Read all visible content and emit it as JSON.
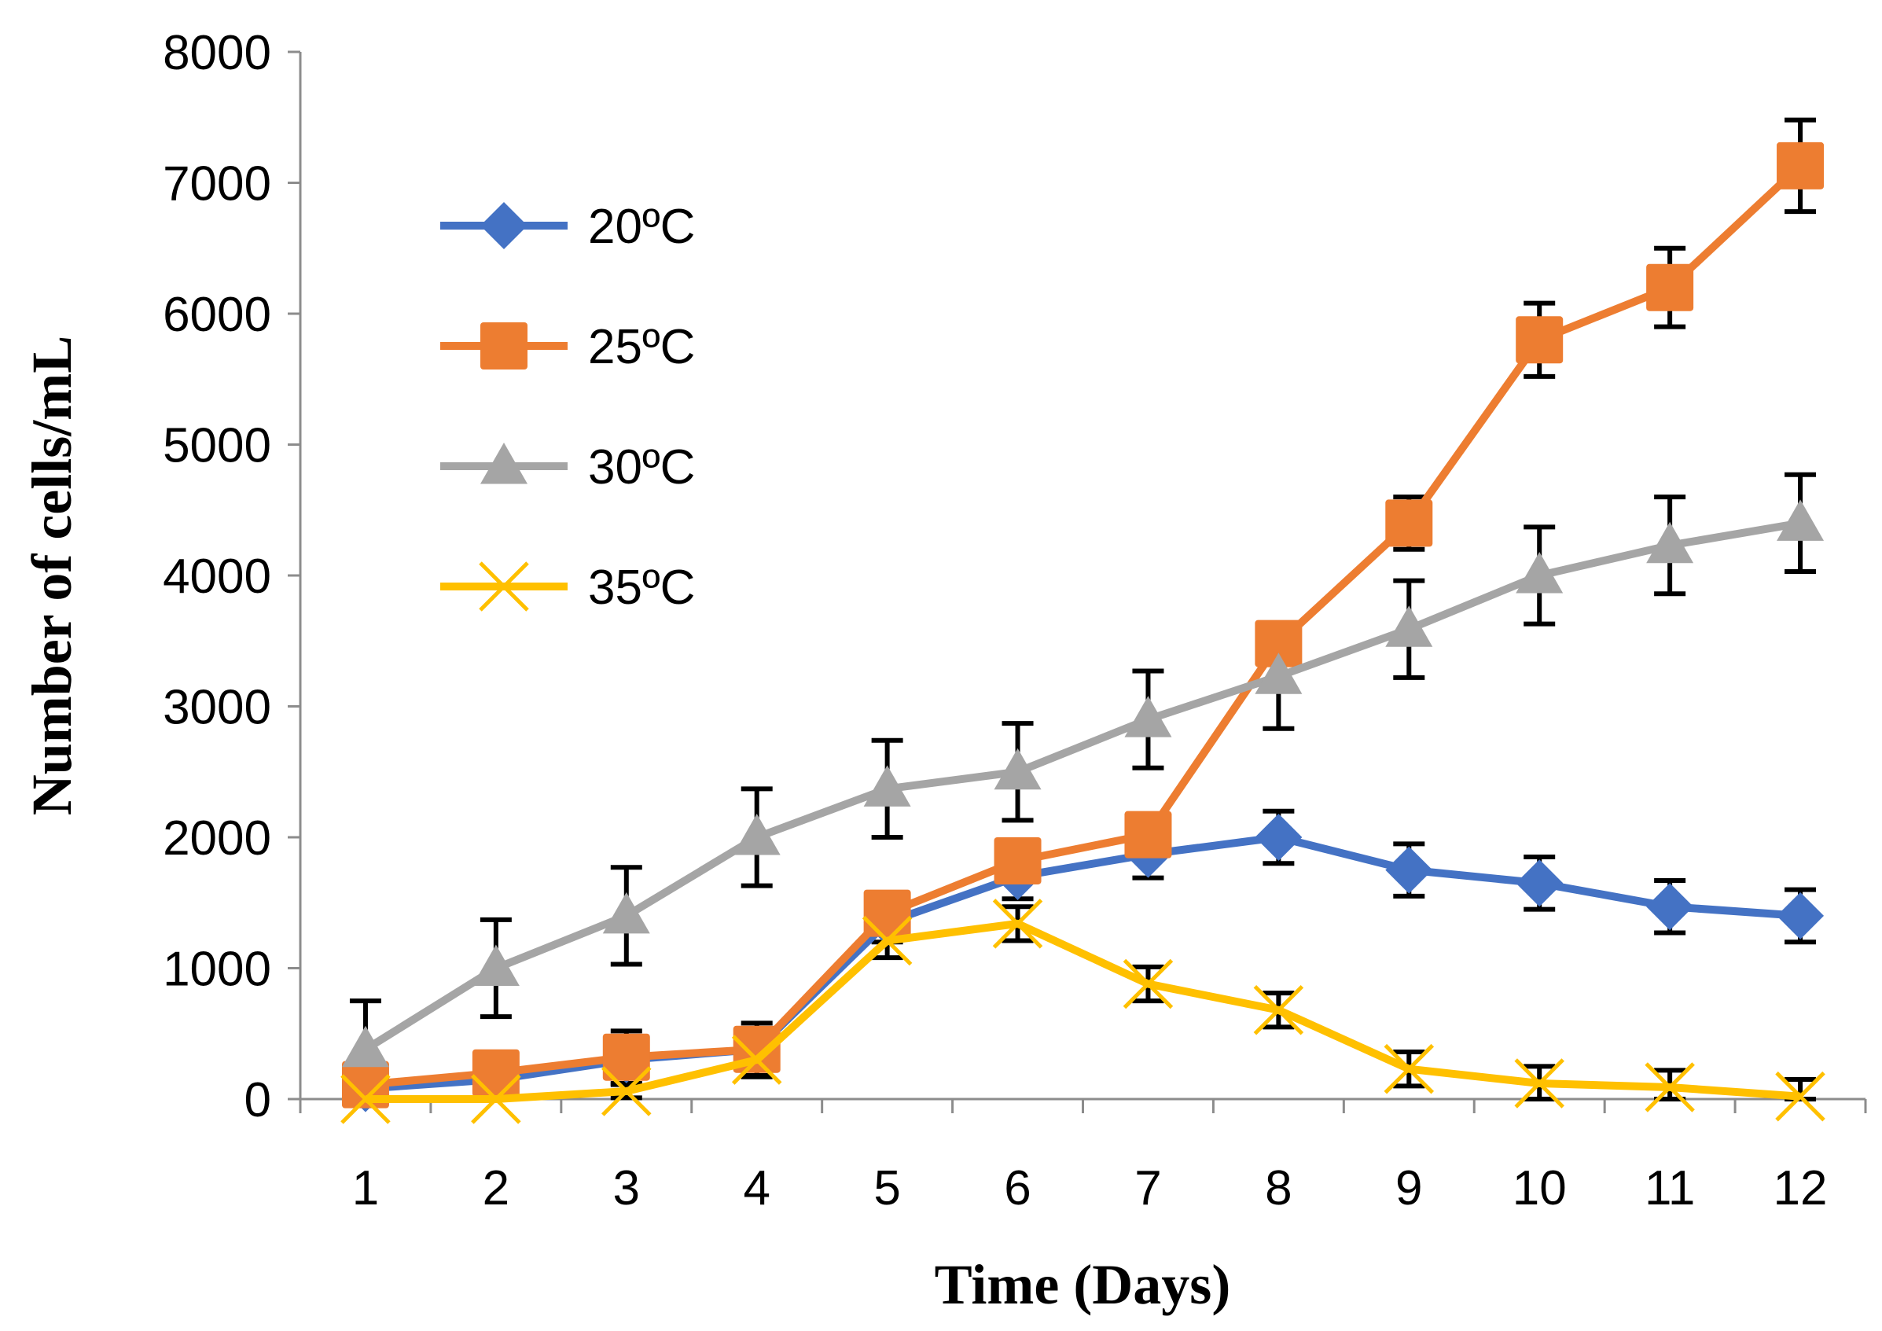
{
  "chart_data": {
    "type": "line",
    "title": "",
    "xlabel": "Time (Days)",
    "ylabel": "Number of cells/mL",
    "categories": [
      "1",
      "2",
      "3",
      "4",
      "5",
      "6",
      "7",
      "8",
      "9",
      "10",
      "11",
      "12"
    ],
    "ylim": [
      0,
      8000
    ],
    "yticks": [
      "0",
      "1000",
      "2000",
      "3000",
      "4000",
      "5000",
      "6000",
      "7000",
      "8000"
    ],
    "grid": false,
    "legend_position": "top-left",
    "error_bars": true,
    "series": [
      {
        "name": "20ºC",
        "color": "#4472C4",
        "marker": "diamond",
        "values": [
          80,
          150,
          300,
          380,
          1350,
          1700,
          1870,
          2000,
          1750,
          1650,
          1470,
          1400
        ],
        "errors": [
          60,
          60,
          100,
          150,
          150,
          170,
          180,
          200,
          200,
          200,
          200,
          200
        ]
      },
      {
        "name": "25ºC",
        "color": "#ED7D31",
        "marker": "square",
        "values": [
          110,
          200,
          320,
          380,
          1420,
          1820,
          2020,
          3480,
          4400,
          5800,
          6200,
          7130
        ],
        "errors": [
          100,
          100,
          200,
          200,
          150,
          150,
          150,
          150,
          200,
          280,
          300,
          350
        ]
      },
      {
        "name": "30ºC",
        "color": "#A5A5A5",
        "marker": "triangle",
        "values": [
          380,
          1000,
          1400,
          2000,
          2370,
          2500,
          2900,
          3230,
          3590,
          4000,
          4230,
          4400
        ],
        "errors": [
          370,
          370,
          370,
          370,
          370,
          370,
          370,
          400,
          370,
          370,
          370,
          370
        ]
      },
      {
        "name": "35ºC",
        "color": "#FFC000",
        "marker": "x",
        "values": [
          0,
          0,
          60,
          300,
          1210,
          1340,
          880,
          680,
          230,
          120,
          90,
          20
        ],
        "errors": [
          50,
          50,
          50,
          130,
          130,
          130,
          130,
          130,
          130,
          130,
          130,
          130
        ]
      }
    ]
  }
}
